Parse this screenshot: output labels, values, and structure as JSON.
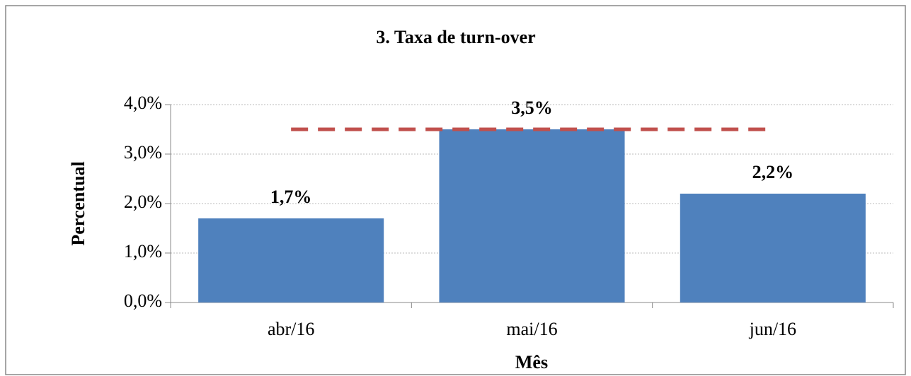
{
  "chart_data": {
    "type": "bar",
    "title": "3. Taxa de turn-over",
    "x_label": "Mês",
    "y_label": "Percentual",
    "categories": [
      "abr/16",
      "mai/16",
      "jun/16"
    ],
    "series": [
      {
        "type": "bar",
        "color": "#4f81bd",
        "values": [
          1.7,
          3.5,
          2.2
        ],
        "value_labels": [
          "1,7%",
          "3,5%",
          "2,2%"
        ]
      },
      {
        "type": "line",
        "color": "#c0504d",
        "dashed": true,
        "values": [
          3.5,
          3.5,
          3.5
        ]
      }
    ],
    "ylim": [
      0,
      4
    ],
    "yticks": [
      {
        "value": 0,
        "label": "0,0%"
      },
      {
        "value": 1,
        "label": "1,0%"
      },
      {
        "value": 2,
        "label": "2,0%"
      },
      {
        "value": 3,
        "label": "3,0%"
      },
      {
        "value": 4,
        "label": "4,0%"
      }
    ],
    "grid": true
  }
}
